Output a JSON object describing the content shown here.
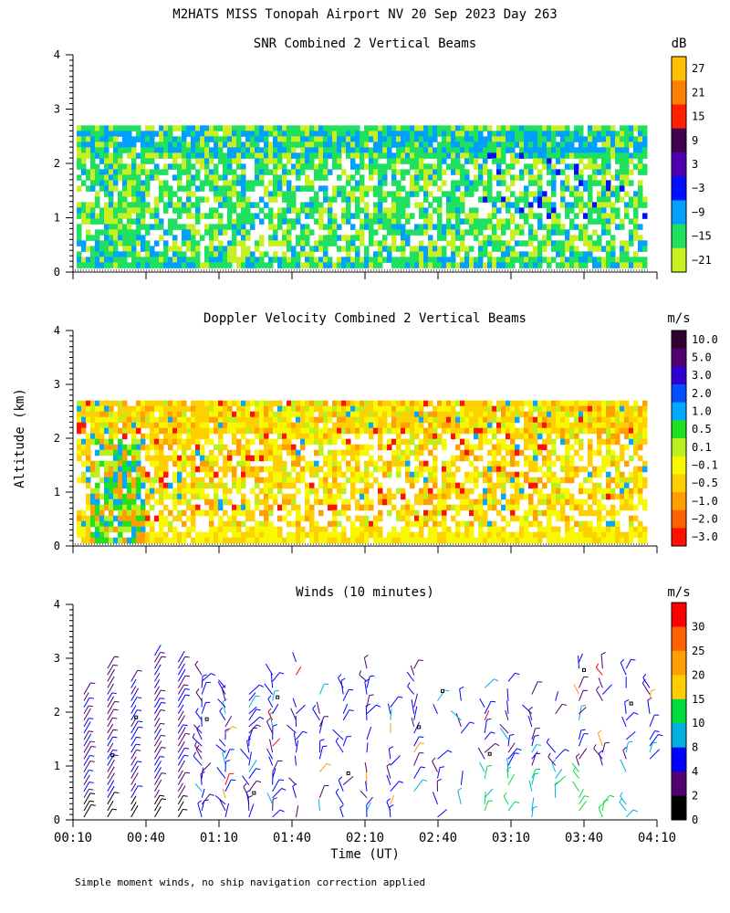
{
  "header": {
    "title": "M2HATS MISS Tonopah Airport NV  20 Sep 2023 Day 263"
  },
  "footer": {
    "note": "Simple moment winds, no ship navigation correction applied"
  },
  "axes": {
    "ylabel": "Altitude (km)",
    "xlabel": "Time (UT)",
    "yticks": [
      "0",
      "1",
      "2",
      "3",
      "4"
    ],
    "xticks": [
      "00:10",
      "00:40",
      "01:10",
      "01:40",
      "02:10",
      "02:40",
      "03:10",
      "03:40",
      "04:10"
    ]
  },
  "chart_data": [
    {
      "type": "heatmap",
      "title": "SNR Combined 2 Vertical Beams",
      "x_range": [
        "00:10",
        "04:10"
      ],
      "ylim": [
        0,
        4
      ],
      "colorbar": {
        "unit": "dB",
        "labels": [
          "27",
          "21",
          "15",
          "9",
          "3",
          "−3",
          "−9",
          "−15",
          "−21"
        ],
        "colors": [
          "#ffc000",
          "#ff8000",
          "#ff2000",
          "#400050",
          "#5000b0",
          "#0010ff",
          "#00a0ff",
          "#20e060",
          "#c8f020"
        ]
      },
      "features": {
        "data_top_km": 2.7,
        "enhanced_layer_km": [
          2.2,
          2.6
        ],
        "dominant_range_db": [
          -21,
          -9
        ]
      }
    },
    {
      "type": "heatmap",
      "title": "Doppler Velocity Combined 2 Vertical Beams",
      "x_range": [
        "00:10",
        "04:10"
      ],
      "ylim": [
        0,
        4
      ],
      "colorbar": {
        "unit": "m/s",
        "labels": [
          "10.0",
          "5.0",
          "3.0",
          "2.0",
          "1.0",
          "0.5",
          "0.1",
          "−0.1",
          "−0.5",
          "−1.0",
          "−2.0",
          "−3.0"
        ],
        "colors": [
          "#300030",
          "#500070",
          "#3000d0",
          "#0050ff",
          "#00a8ff",
          "#20e020",
          "#b8f020",
          "#f8f800",
          "#ffd000",
          "#ffa000",
          "#ff6000",
          "#ff1000"
        ]
      },
      "features": {
        "data_top_km": 2.7,
        "dominant_range_ms": [
          -1.0,
          0.1
        ]
      }
    },
    {
      "type": "scatter",
      "title": "Winds (10 minutes)",
      "x_range": [
        "00:10",
        "04:10"
      ],
      "ylim": [
        0,
        4
      ],
      "colorbar": {
        "unit": "m/s",
        "labels": [
          "30",
          "25",
          "20",
          "15",
          "10",
          "8",
          "4",
          "2",
          "0"
        ],
        "colors": [
          "#ff0000",
          "#ff6000",
          "#ffa000",
          "#ffcc00",
          "#00dc40",
          "#00b0e0",
          "#0000ff",
          "#500070",
          "#000000"
        ]
      },
      "features": {
        "profile_interval_min": 10,
        "max_height_km": 3.1
      }
    }
  ]
}
